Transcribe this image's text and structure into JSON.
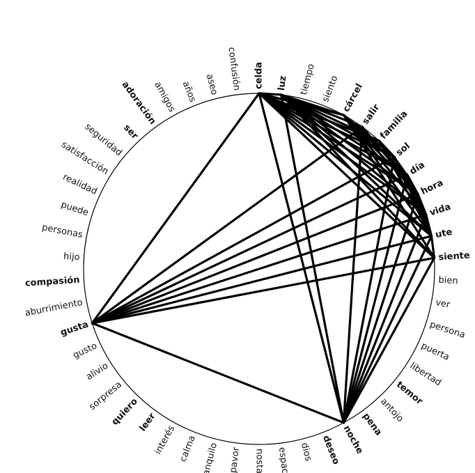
{
  "colors": {
    "edge": "#000000",
    "circle": "#000000",
    "text": "#111111",
    "background": "#ffffff"
  },
  "nodes": [
    {
      "id": "celda",
      "label": "celda",
      "bold": true
    },
    {
      "id": "luz",
      "label": "luz",
      "bold": true
    },
    {
      "id": "tiempo",
      "label": "tiempo",
      "bold": false
    },
    {
      "id": "siento",
      "label": "siento",
      "bold": false
    },
    {
      "id": "carcel",
      "label": "cárcel",
      "bold": true
    },
    {
      "id": "salir",
      "label": "salir",
      "bold": true
    },
    {
      "id": "familia",
      "label": "familia",
      "bold": true
    },
    {
      "id": "sol",
      "label": "sol",
      "bold": true
    },
    {
      "id": "dia",
      "label": "día",
      "bold": true
    },
    {
      "id": "hora",
      "label": "hora",
      "bold": true
    },
    {
      "id": "vida",
      "label": "vida",
      "bold": true
    },
    {
      "id": "ute",
      "label": "ute",
      "bold": true
    },
    {
      "id": "siente",
      "label": "siente",
      "bold": true
    },
    {
      "id": "bien",
      "label": "bien",
      "bold": false
    },
    {
      "id": "ver",
      "label": "ver",
      "bold": false
    },
    {
      "id": "persona",
      "label": "persona",
      "bold": false
    },
    {
      "id": "puerta",
      "label": "puerta",
      "bold": false
    },
    {
      "id": "libertad",
      "label": "libertad",
      "bold": false
    },
    {
      "id": "temor",
      "label": "temor",
      "bold": true
    },
    {
      "id": "antojo",
      "label": "antojo",
      "bold": false
    },
    {
      "id": "pena",
      "label": "pena",
      "bold": true
    },
    {
      "id": "noche",
      "label": "noche",
      "bold": true
    },
    {
      "id": "deseo",
      "label": "deseo",
      "bold": true
    },
    {
      "id": "dios",
      "label": "dios",
      "bold": false
    },
    {
      "id": "espacio",
      "label": "espacio",
      "bold": false
    },
    {
      "id": "nostalgia",
      "label": "nostalgia",
      "bold": false
    },
    {
      "id": "pavor",
      "label": "pavor",
      "bold": false
    },
    {
      "id": "tranquilo",
      "label": "tranquilo",
      "bold": false
    },
    {
      "id": "calma",
      "label": "calma",
      "bold": false
    },
    {
      "id": "interes",
      "label": "interés",
      "bold": false
    },
    {
      "id": "leer",
      "label": "leer",
      "bold": true
    },
    {
      "id": "quiero",
      "label": "quiero",
      "bold": true
    },
    {
      "id": "sorpresa",
      "label": "sorpresa",
      "bold": false
    },
    {
      "id": "alivio",
      "label": "alivio",
      "bold": false
    },
    {
      "id": "gusto",
      "label": "gusto",
      "bold": false
    },
    {
      "id": "gusta",
      "label": "gusta",
      "bold": true
    },
    {
      "id": "aburrimiento",
      "label": "aburrimiento",
      "bold": false
    },
    {
      "id": "compasion",
      "label": "compasión",
      "bold": true
    },
    {
      "id": "hijo",
      "label": "hijo",
      "bold": false
    },
    {
      "id": "personas",
      "label": "personas",
      "bold": false
    },
    {
      "id": "puede",
      "label": "puede",
      "bold": false
    },
    {
      "id": "realidad",
      "label": "realidad",
      "bold": false
    },
    {
      "id": "satisfaccion",
      "label": "satisfacción",
      "bold": false
    },
    {
      "id": "seguridad",
      "label": "seguridad",
      "bold": false
    },
    {
      "id": "ser",
      "label": "ser",
      "bold": true
    },
    {
      "id": "adoracion",
      "label": "adoración",
      "bold": true
    },
    {
      "id": "amigos",
      "label": "amigos",
      "bold": false
    },
    {
      "id": "anos",
      "label": "años",
      "bold": false
    },
    {
      "id": "aseo",
      "label": "aseo",
      "bold": false
    },
    {
      "id": "confusion",
      "label": "confusión",
      "bold": false
    }
  ],
  "edges": [
    [
      "celda",
      "luz"
    ],
    [
      "celda",
      "carcel"
    ],
    [
      "celda",
      "familia"
    ],
    [
      "celda",
      "sol"
    ],
    [
      "celda",
      "dia"
    ],
    [
      "celda",
      "hora"
    ],
    [
      "celda",
      "vida"
    ],
    [
      "celda",
      "ute"
    ],
    [
      "celda",
      "siente"
    ],
    [
      "celda",
      "noche"
    ],
    [
      "celda",
      "gusta"
    ],
    [
      "luz",
      "carcel"
    ],
    [
      "luz",
      "salir"
    ],
    [
      "luz",
      "familia"
    ],
    [
      "luz",
      "sol"
    ],
    [
      "luz",
      "dia"
    ],
    [
      "luz",
      "hora"
    ],
    [
      "luz",
      "vida"
    ],
    [
      "luz",
      "ute"
    ],
    [
      "luz",
      "siente"
    ],
    [
      "luz",
      "noche"
    ],
    [
      "carcel",
      "sol"
    ],
    [
      "carcel",
      "dia"
    ],
    [
      "carcel",
      "hora"
    ],
    [
      "carcel",
      "vida"
    ],
    [
      "carcel",
      "ute"
    ],
    [
      "carcel",
      "siente"
    ],
    [
      "salir",
      "hora"
    ],
    [
      "salir",
      "noche"
    ],
    [
      "salir",
      "gusta"
    ],
    [
      "familia",
      "sol"
    ],
    [
      "familia",
      "vida"
    ],
    [
      "familia",
      "ute"
    ],
    [
      "sol",
      "hora"
    ],
    [
      "sol",
      "vida"
    ],
    [
      "sol",
      "ute"
    ],
    [
      "sol",
      "noche"
    ],
    [
      "sol",
      "gusta"
    ],
    [
      "dia",
      "hora"
    ],
    [
      "dia",
      "vida"
    ],
    [
      "dia",
      "ute"
    ],
    [
      "dia",
      "noche"
    ],
    [
      "dia",
      "gusta"
    ],
    [
      "hora",
      "vida"
    ],
    [
      "hora",
      "ute"
    ],
    [
      "hora",
      "noche"
    ],
    [
      "hora",
      "gusta"
    ],
    [
      "vida",
      "ute"
    ],
    [
      "vida",
      "noche"
    ],
    [
      "vida",
      "gusta"
    ],
    [
      "ute",
      "siente"
    ],
    [
      "ute",
      "noche"
    ],
    [
      "ute",
      "gusta"
    ],
    [
      "siente",
      "noche"
    ],
    [
      "siente",
      "gusta"
    ],
    [
      "gusta",
      "noche"
    ]
  ]
}
